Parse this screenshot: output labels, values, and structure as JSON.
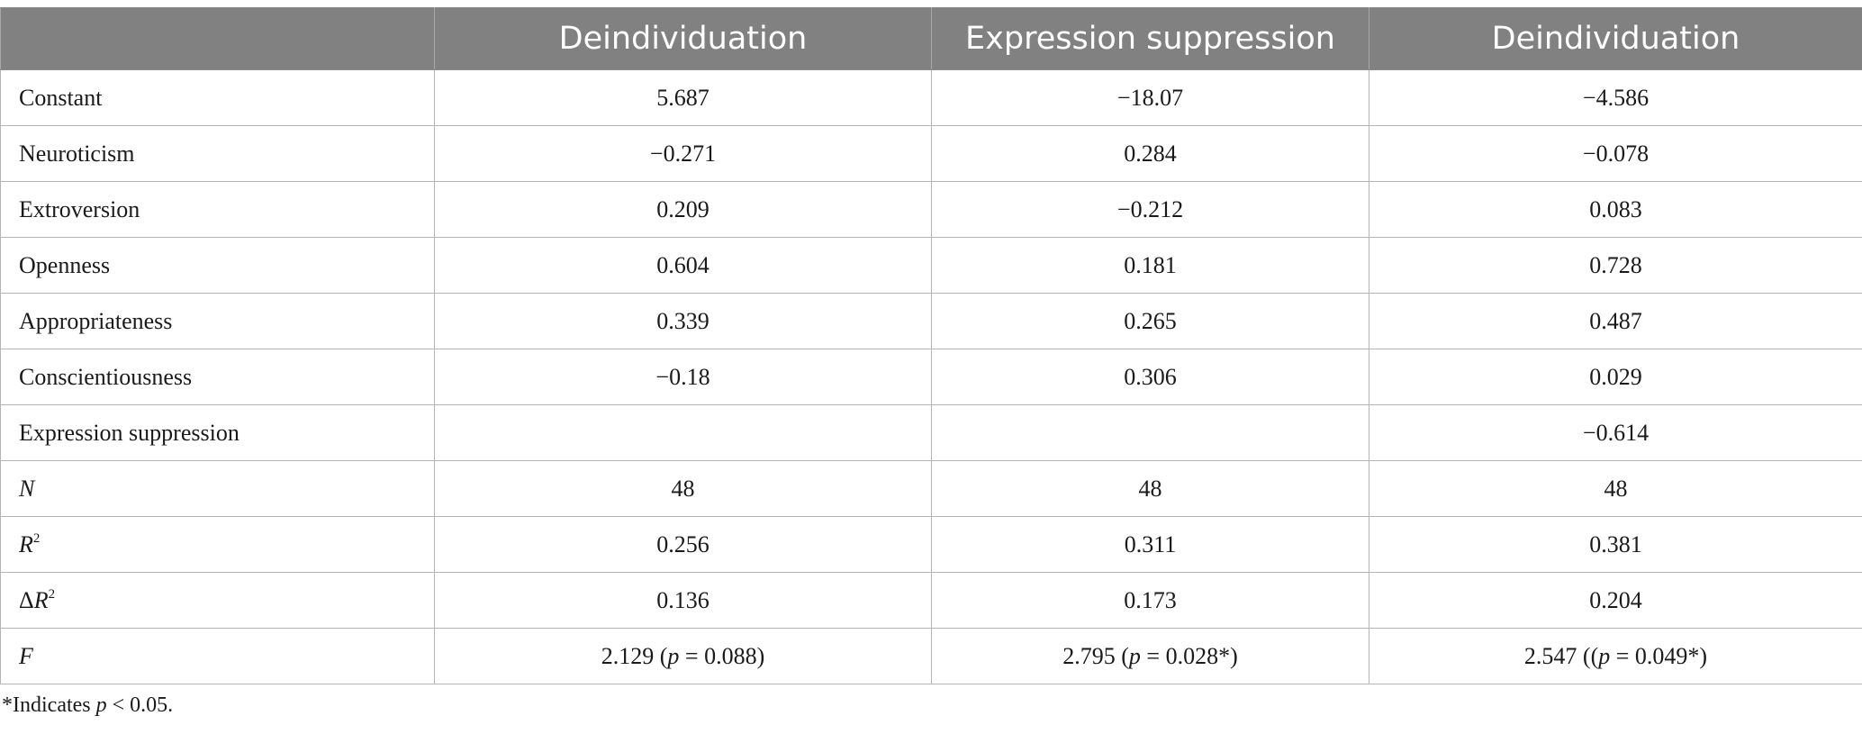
{
  "table": {
    "headers": [
      "",
      "Deindividuation",
      "Expression suppression",
      "Deindividuation"
    ],
    "rows": [
      {
        "label": "Constant",
        "values": [
          "5.687",
          "−18.07",
          "−4.586"
        ]
      },
      {
        "label": "Neuroticism",
        "values": [
          "−0.271",
          "0.284",
          "−0.078"
        ]
      },
      {
        "label": "Extroversion",
        "values": [
          "0.209",
          "−0.212",
          "0.083"
        ]
      },
      {
        "label": "Openness",
        "values": [
          "0.604",
          "0.181",
          "0.728"
        ]
      },
      {
        "label": "Appropriateness",
        "values": [
          "0.339",
          "0.265",
          "0.487"
        ]
      },
      {
        "label": "Conscientiousness",
        "values": [
          "−0.18",
          "0.306",
          "0.029"
        ]
      },
      {
        "label": "Expression suppression",
        "values": [
          "",
          "",
          "−0.614"
        ]
      }
    ],
    "n_row": {
      "label": "N",
      "values": [
        "48",
        "48",
        "48"
      ]
    },
    "r2_row": {
      "label_letter": "R",
      "label_sup": "2",
      "values": [
        "0.256",
        "0.311",
        "0.381"
      ]
    },
    "dr2_row": {
      "label_prefix": "Δ",
      "label_letter": "R",
      "label_sup": "2",
      "values": [
        "0.136",
        "0.173",
        "0.204"
      ]
    },
    "f_row": {
      "label": "F",
      "cells": [
        {
          "pre": "2.129 (",
          "p": "p",
          "post": " = 0.088)"
        },
        {
          "pre": "2.795 (",
          "p": "p",
          "post": " = 0.028*)"
        },
        {
          "pre": "2.547 ((",
          "p": "p",
          "post": " = 0.049*)"
        }
      ]
    }
  },
  "note": {
    "pre": "*Indicates ",
    "p": "p",
    "post": " < 0.05."
  }
}
